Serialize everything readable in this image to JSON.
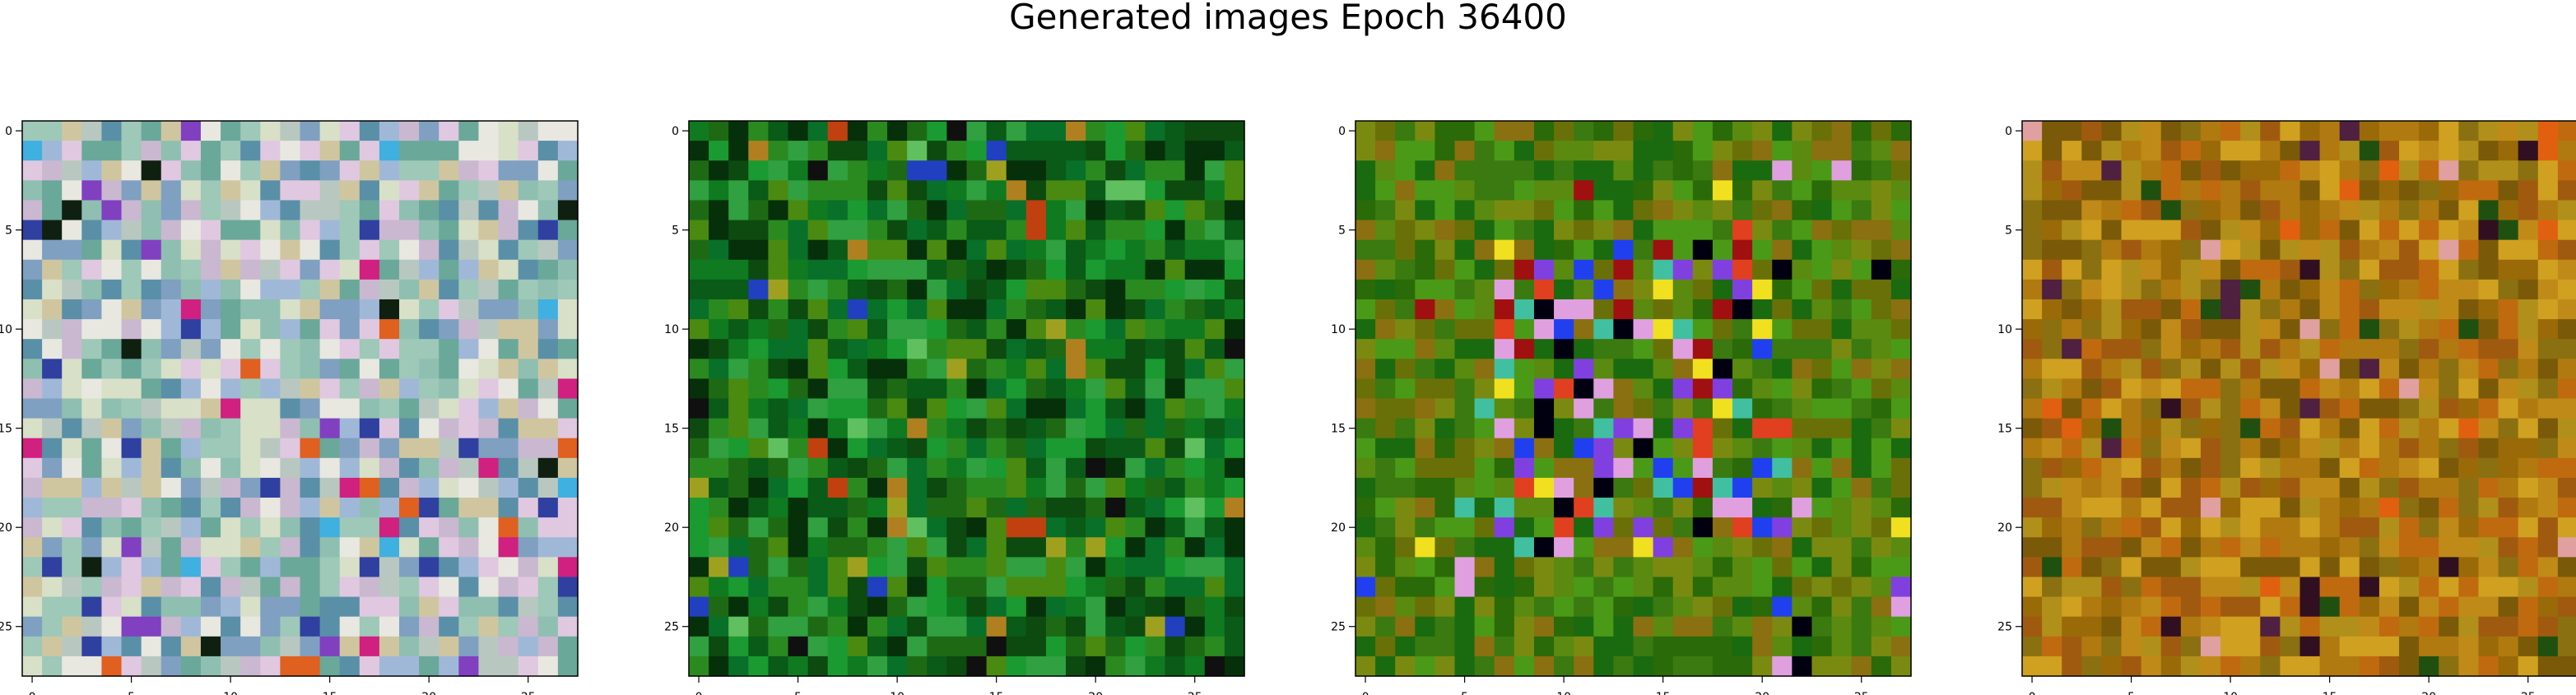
{
  "figure": {
    "title": "Generated images Epoch 36400"
  },
  "chart_data": [
    {
      "type": "heatmap",
      "title": "",
      "xlabel": "",
      "ylabel": "",
      "xticks": [
        "0",
        "5",
        "10",
        "15",
        "20",
        "25"
      ],
      "yticks": [
        "0",
        "5",
        "10",
        "15",
        "20",
        "25"
      ],
      "xlim": [
        -0.5,
        27.5
      ],
      "ylim": [
        27.5,
        -0.5
      ],
      "grid": 28,
      "palette": [
        "#6aa89a",
        "#8fbfb0",
        "#b8c8c0",
        "#5a8fa8",
        "#c9b8d0",
        "#d8e0c8",
        "#a0b8d8",
        "#e0c8e0",
        "#9ec8b8",
        "#cfc6a0",
        "#7fa0c0",
        "#e8e8e0"
      ],
      "accents": [
        "#3040a0",
        "#d02080",
        "#102010",
        "#40b0e0",
        "#e06020",
        "#8040c0"
      ]
    },
    {
      "type": "heatmap",
      "title": "",
      "xlabel": "",
      "ylabel": "",
      "xticks": [
        "0",
        "5",
        "10",
        "15",
        "20",
        "25"
      ],
      "yticks": [
        "0",
        "5",
        "10",
        "15",
        "20",
        "25"
      ],
      "xlim": [
        -0.5,
        27.5
      ],
      "ylim": [
        27.5,
        -0.5
      ],
      "grid": 28,
      "palette": [
        "#0f7a20",
        "#1a9a30",
        "#0a5a18",
        "#2a8a20",
        "#087028",
        "#30a040",
        "#0c4a10",
        "#1e6a14",
        "#4a8a10",
        "#05300a"
      ],
      "accents": [
        "#101010",
        "#c04010",
        "#2040c0",
        "#a0a020",
        "#60c060",
        "#b08020"
      ]
    },
    {
      "type": "heatmap",
      "title": "",
      "xlabel": "",
      "ylabel": "",
      "xticks": [
        "0",
        "5",
        "10",
        "15",
        "20",
        "25"
      ],
      "yticks": [
        "0",
        "5",
        "10",
        "15",
        "20",
        "25"
      ],
      "xlim": [
        -0.5,
        27.5
      ],
      "ylim": [
        27.5,
        -0.5
      ],
      "grid": 28,
      "palette": [
        "#3a7a10",
        "#5a8a10",
        "#2a6a08",
        "#7a8a10",
        "#1a6a10",
        "#6a7008",
        "#4a9a18",
        "#8a7010"
      ],
      "accents": [
        "#8040e0",
        "#2040f0",
        "#e0a0e0",
        "#000010",
        "#e04020",
        "#40c0a0",
        "#f0e020",
        "#a01010"
      ]
    },
    {
      "type": "heatmap",
      "title": "",
      "xlabel": "",
      "ylabel": "",
      "xticks": [
        "0",
        "5",
        "10",
        "15",
        "20",
        "25"
      ],
      "yticks": [
        "0",
        "5",
        "10",
        "15",
        "20",
        "25"
      ],
      "xlim": [
        -0.5,
        27.5
      ],
      "ylim": [
        27.5,
        -0.5
      ],
      "grid": 28,
      "palette": [
        "#b07a10",
        "#c08a18",
        "#9a6a08",
        "#a05a10",
        "#d0a020",
        "#8a7010",
        "#c06a10",
        "#7a5a08",
        "#b0901a"
      ],
      "accents": [
        "#301020",
        "#e06010",
        "#205010",
        "#e0a0a0",
        "#502040"
      ]
    }
  ]
}
